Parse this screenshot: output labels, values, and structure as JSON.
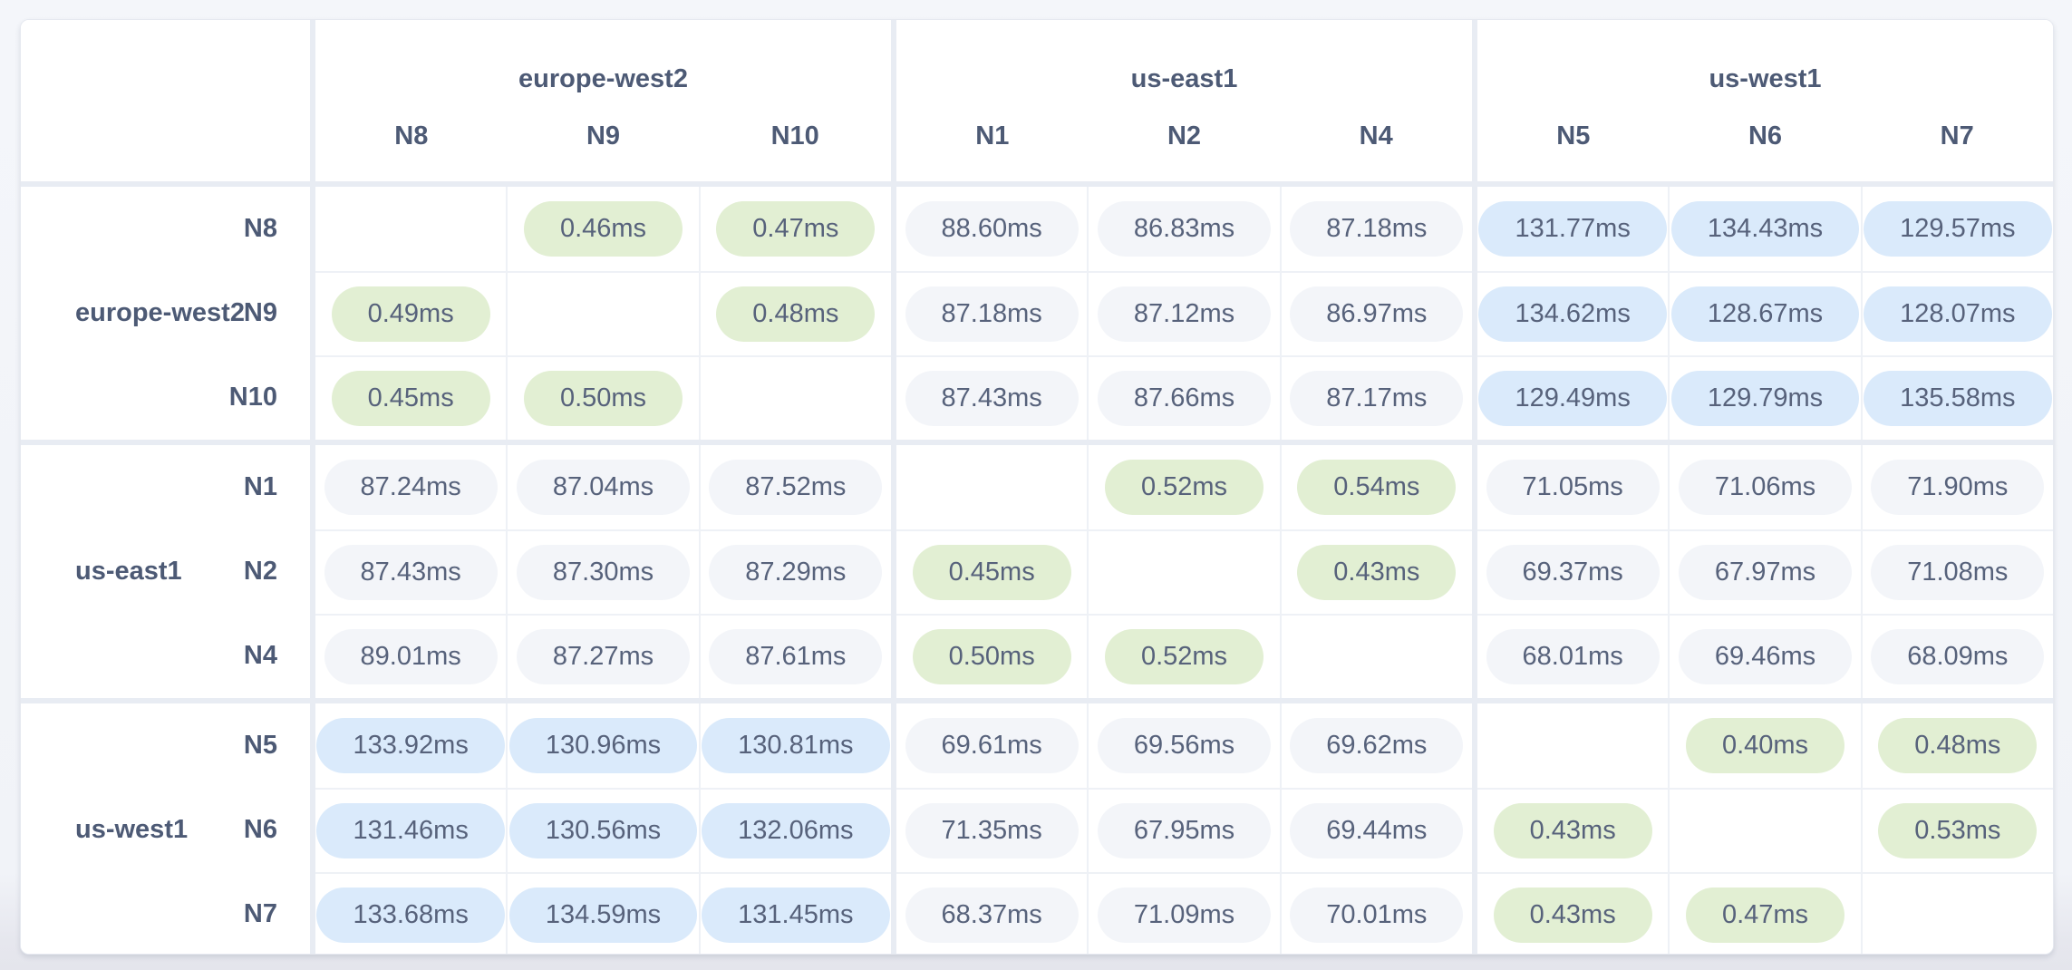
{
  "page": {
    "background": "#f3f5f9"
  },
  "chart_data": {
    "type": "heatmap",
    "unit": "ms",
    "col_groups": [
      {
        "region": "europe-west2",
        "nodes": [
          "N8",
          "N9",
          "N10"
        ]
      },
      {
        "region": "us-east1",
        "nodes": [
          "N1",
          "N2",
          "N4"
        ]
      },
      {
        "region": "us-west1",
        "nodes": [
          "N5",
          "N6",
          "N7"
        ]
      }
    ],
    "row_groups": [
      {
        "region": "europe-west2",
        "nodes": [
          "N8",
          "N9",
          "N10"
        ]
      },
      {
        "region": "us-east1",
        "nodes": [
          "N1",
          "N2",
          "N4"
        ]
      },
      {
        "region": "us-west1",
        "nodes": [
          "N5",
          "N6",
          "N7"
        ]
      }
    ],
    "values": [
      [
        null,
        0.46,
        0.47,
        88.6,
        86.83,
        87.18,
        131.77,
        134.43,
        129.57
      ],
      [
        0.49,
        null,
        0.48,
        87.18,
        87.12,
        86.97,
        134.62,
        128.67,
        128.07
      ],
      [
        0.45,
        0.5,
        null,
        87.43,
        87.66,
        87.17,
        129.49,
        129.79,
        135.58
      ],
      [
        87.24,
        87.04,
        87.52,
        null,
        0.52,
        0.54,
        71.05,
        71.06,
        71.9
      ],
      [
        87.43,
        87.3,
        87.29,
        0.45,
        null,
        0.43,
        69.37,
        67.97,
        71.08
      ],
      [
        89.01,
        87.27,
        87.61,
        0.5,
        0.52,
        null,
        68.01,
        69.46,
        68.09
      ],
      [
        133.92,
        130.96,
        130.81,
        69.61,
        69.56,
        69.62,
        null,
        0.4,
        0.48
      ],
      [
        131.46,
        130.56,
        132.06,
        71.35,
        67.95,
        69.44,
        0.43,
        null,
        0.53
      ],
      [
        133.68,
        134.59,
        131.45,
        68.37,
        71.09,
        70.01,
        0.43,
        0.47,
        null
      ]
    ],
    "thresholds": {
      "fast_below_ms": 1,
      "slow_above_ms": 100
    },
    "colors": {
      "fast_bg": "#e2efd3",
      "medium_bg": "#f3f5f9",
      "slow_bg": "#daeafb",
      "pill_text": "#57627b",
      "label_text": "#4d5a75"
    }
  }
}
